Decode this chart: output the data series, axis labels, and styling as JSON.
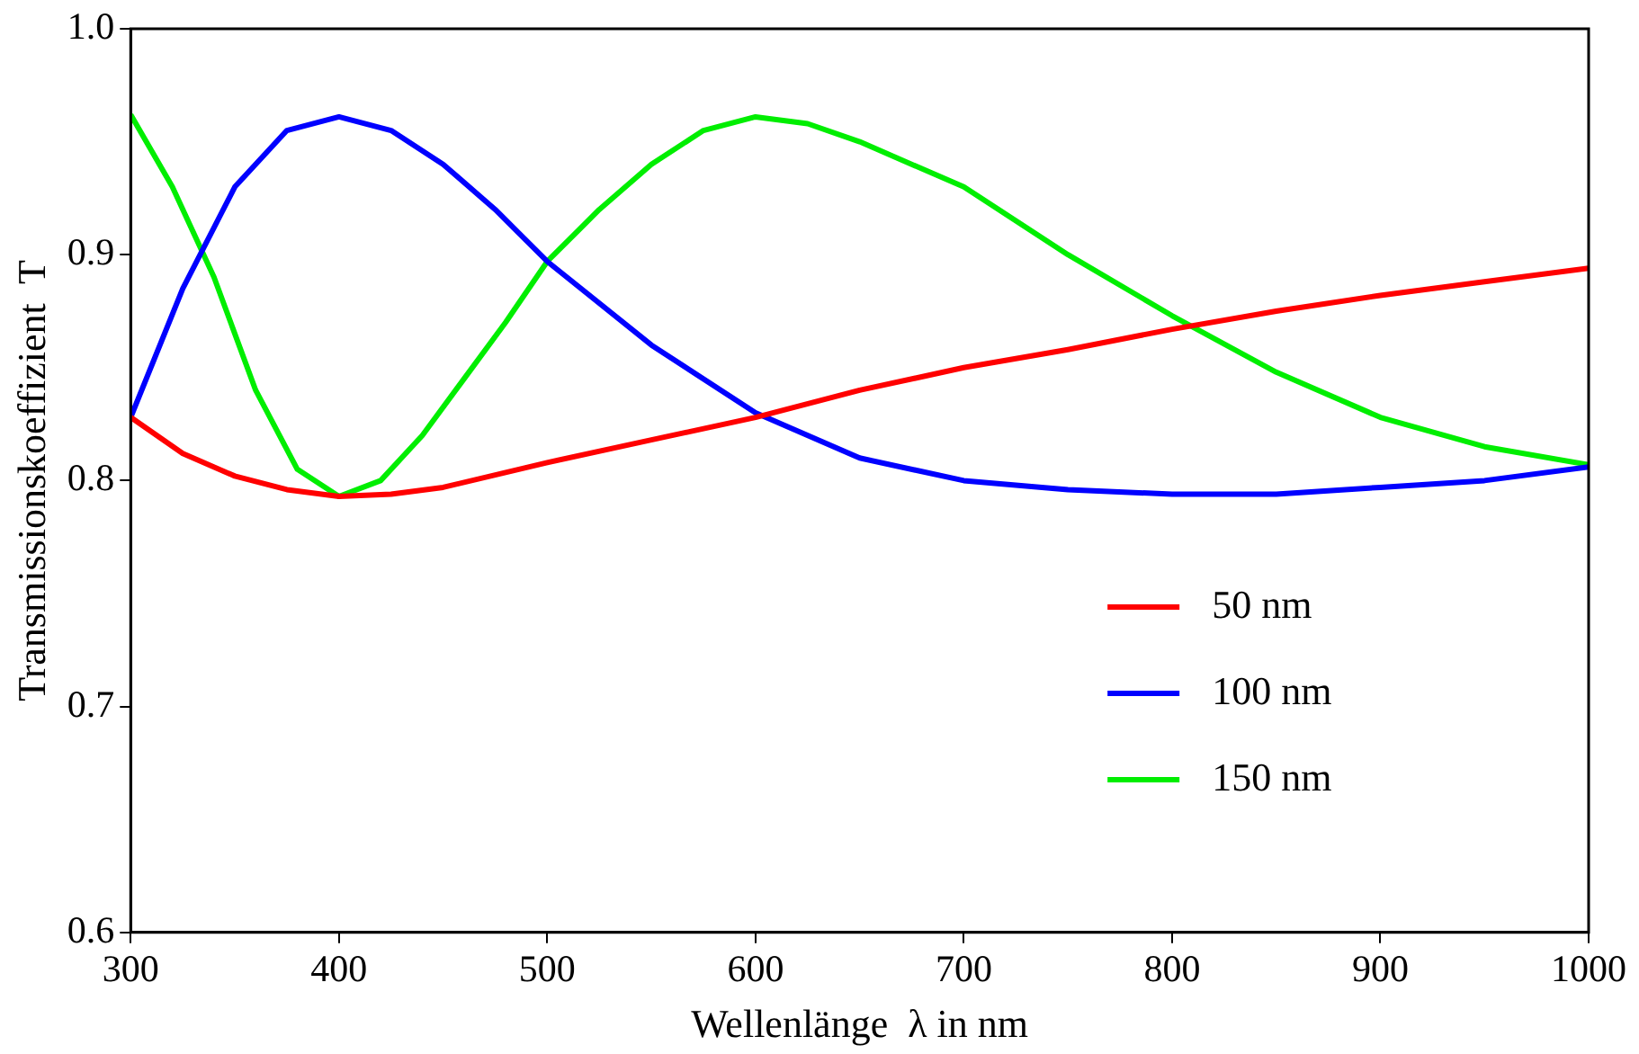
{
  "chart_data": {
    "type": "line",
    "xlabel": "Wellenlänge  λ in nm",
    "ylabel": "Transmissionskoeffizient  T",
    "xlim": [
      300,
      1000
    ],
    "xticks": [
      300,
      400,
      500,
      600,
      700,
      800,
      900,
      1000
    ],
    "ylim": [
      0.6,
      1.0
    ],
    "yticks": [
      {
        "value": 0.6,
        "label": "0.6"
      },
      {
        "value": 0.7,
        "label": "0.7"
      },
      {
        "value": 0.8,
        "label": "0.8"
      },
      {
        "value": 0.9,
        "label": "0.9"
      },
      {
        "value": 1.0,
        "label": "1.0"
      }
    ],
    "grid": false,
    "legend": "right",
    "marker": "none",
    "line_style": "solid",
    "series": [
      {
        "name": "50 nm",
        "color": "#ff0000",
        "x": [
          300,
          325,
          350,
          375,
          400,
          425,
          450,
          500,
          550,
          600,
          650,
          700,
          750,
          800,
          850,
          900,
          950,
          1000
        ],
        "values": [
          0.828,
          0.812,
          0.802,
          0.796,
          0.793,
          0.794,
          0.797,
          0.808,
          0.818,
          0.828,
          0.84,
          0.85,
          0.858,
          0.867,
          0.875,
          0.882,
          0.888,
          0.894
        ]
      },
      {
        "name": "100 nm",
        "color": "#0000ff",
        "x": [
          300,
          325,
          350,
          375,
          400,
          425,
          450,
          475,
          500,
          550,
          600,
          650,
          700,
          750,
          800,
          850,
          900,
          950,
          1000
        ],
        "values": [
          0.828,
          0.885,
          0.93,
          0.955,
          0.961,
          0.955,
          0.94,
          0.92,
          0.897,
          0.86,
          0.83,
          0.81,
          0.8,
          0.796,
          0.794,
          0.794,
          0.797,
          0.8,
          0.806
        ]
      },
      {
        "name": "150 nm",
        "color": "#00ee00",
        "x": [
          300,
          320,
          340,
          360,
          380,
          400,
          420,
          440,
          460,
          480,
          500,
          525,
          550,
          575,
          600,
          625,
          650,
          700,
          750,
          800,
          850,
          900,
          950,
          1000
        ],
        "values": [
          0.962,
          0.93,
          0.89,
          0.84,
          0.805,
          0.793,
          0.8,
          0.82,
          0.845,
          0.87,
          0.897,
          0.92,
          0.94,
          0.955,
          0.961,
          0.958,
          0.95,
          0.93,
          0.9,
          0.873,
          0.848,
          0.828,
          0.815,
          0.807
        ]
      }
    ]
  }
}
